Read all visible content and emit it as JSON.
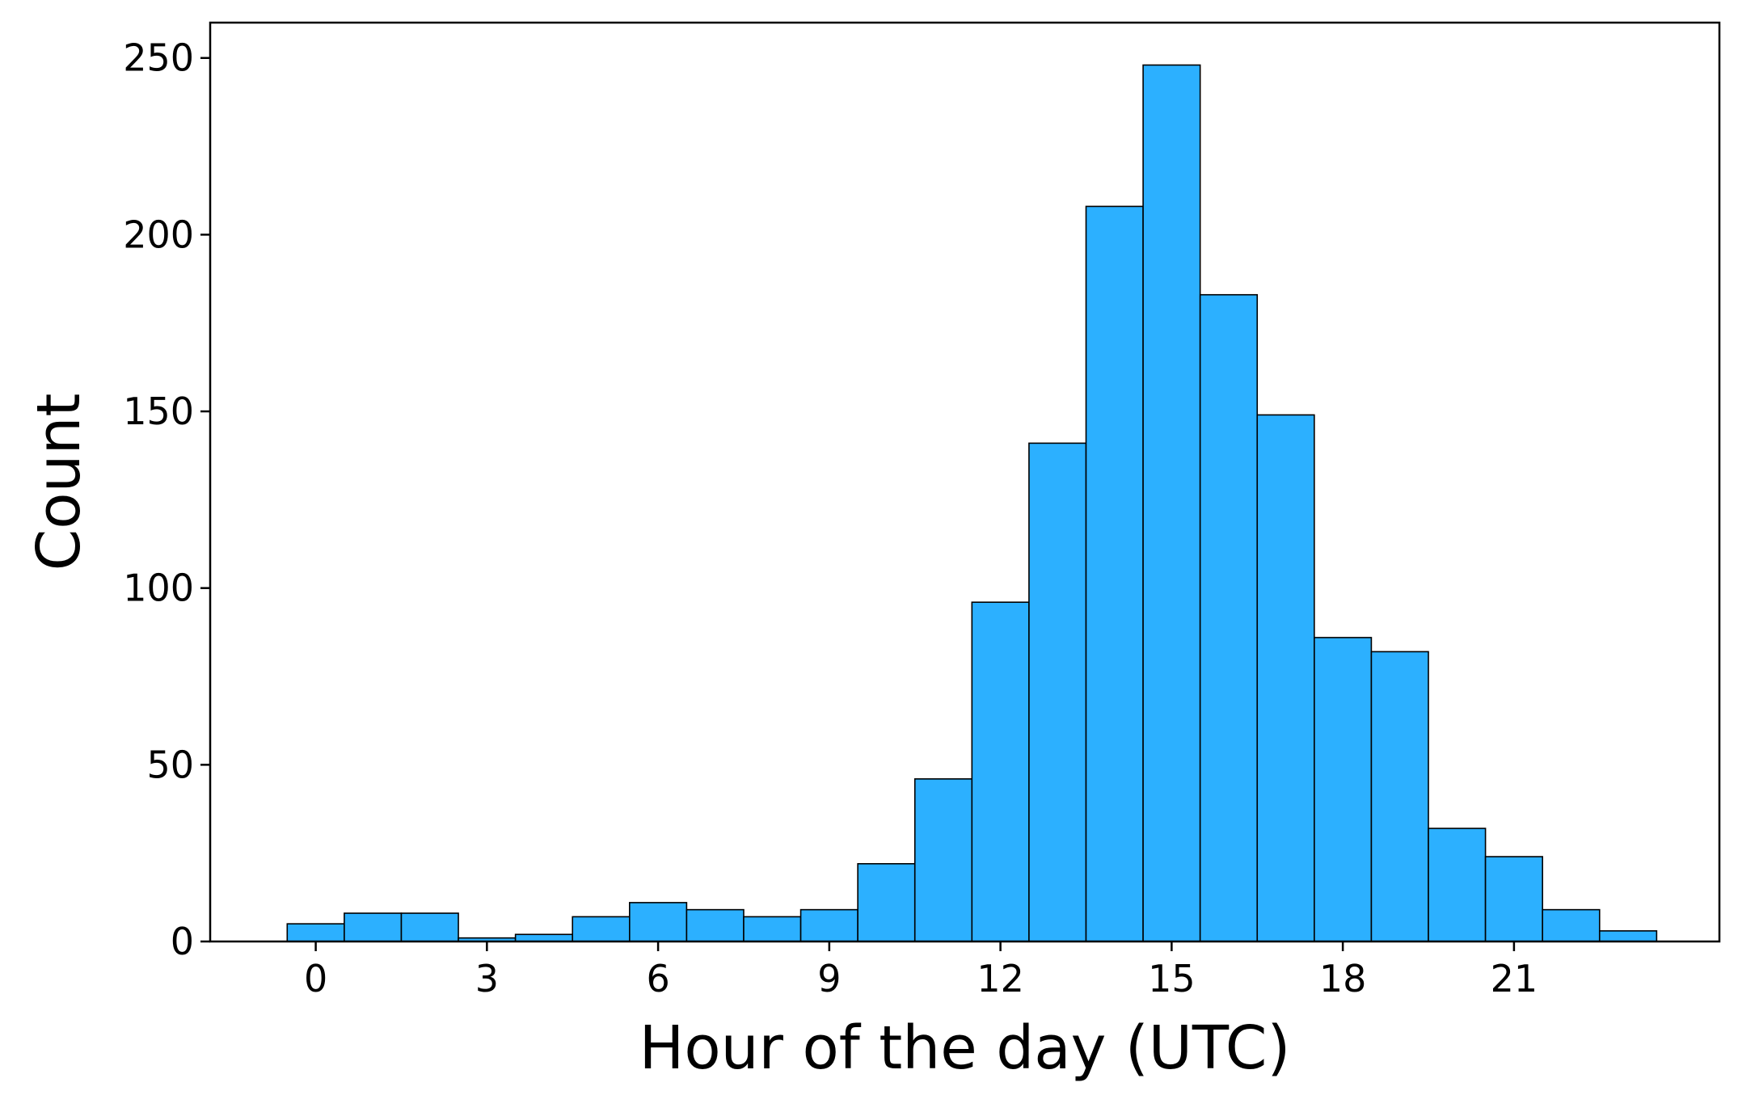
{
  "chart_data": {
    "type": "bar",
    "title": "",
    "xlabel": "Hour of the day (UTC)",
    "ylabel": "Count",
    "categories": [
      0,
      1,
      2,
      3,
      4,
      5,
      6,
      7,
      8,
      9,
      10,
      11,
      12,
      13,
      14,
      15,
      16,
      17,
      18,
      19,
      20,
      21,
      22,
      23
    ],
    "values": [
      5,
      8,
      8,
      1,
      2,
      7,
      11,
      9,
      7,
      9,
      22,
      46,
      96,
      141,
      208,
      248,
      183,
      149,
      86,
      82,
      32,
      24,
      9,
      3
    ],
    "xlim": [
      -1.85,
      24.6
    ],
    "ylim": [
      0,
      260
    ],
    "xticks": [
      0,
      3,
      6,
      9,
      12,
      15,
      18,
      21
    ],
    "yticks": [
      0,
      50,
      100,
      150,
      200,
      250
    ],
    "grid": false,
    "bar_color": "#2cb0ff",
    "edge_color": "#000000"
  }
}
